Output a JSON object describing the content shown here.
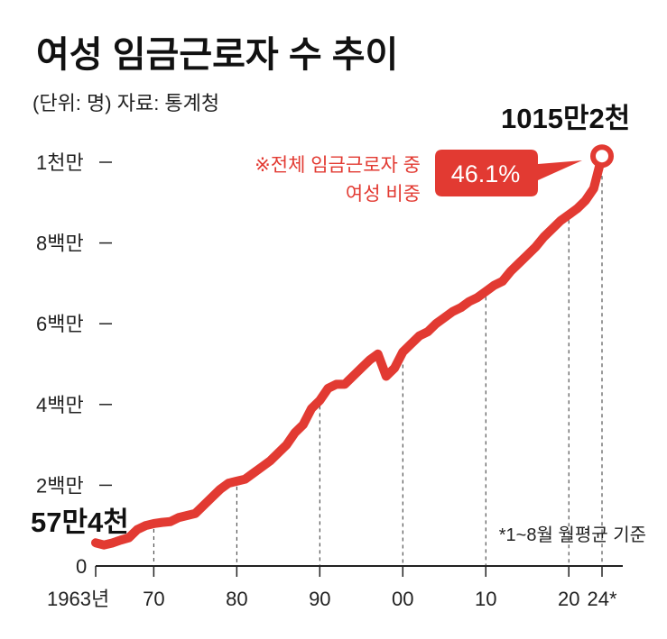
{
  "chart_data": {
    "type": "line",
    "title": "여성 임금근로자 수 추이",
    "subtitle": "(단위: 명) 자료: 통계청",
    "y_tick_labels": [
      "0",
      "2백만",
      "4백만",
      "6백만",
      "8백만",
      "1천만"
    ],
    "y_tick_values": [
      0,
      2000000,
      4000000,
      6000000,
      8000000,
      10000000
    ],
    "ylim": [
      0,
      10000000
    ],
    "x_tick_labels": [
      "1963년",
      "70",
      "80",
      "90",
      "00",
      "10",
      "20",
      "24*"
    ],
    "x_tick_values": [
      1963,
      1970,
      1980,
      1990,
      2000,
      2010,
      2020,
      2024
    ],
    "xlim": [
      1963,
      2024
    ],
    "series": [
      {
        "x": [
          1963,
          1964,
          1965,
          1966,
          1967,
          1968,
          1969,
          1970,
          1971,
          1972,
          1973,
          1974,
          1975,
          1976,
          1977,
          1978,
          1979,
          1980,
          1981,
          1982,
          1983,
          1984,
          1985,
          1986,
          1987,
          1988,
          1989,
          1990,
          1991,
          1992,
          1993,
          1994,
          1995,
          1996,
          1997,
          1998,
          1999,
          2000,
          2001,
          2002,
          2003,
          2004,
          2005,
          2006,
          2007,
          2008,
          2009,
          2010,
          2011,
          2012,
          2013,
          2014,
          2015,
          2016,
          2017,
          2018,
          2019,
          2020,
          2021,
          2022,
          2023,
          2024
        ],
        "values": [
          574000,
          520000,
          570000,
          640000,
          700000,
          900000,
          1000000,
          1050000,
          1080000,
          1100000,
          1200000,
          1250000,
          1300000,
          1500000,
          1700000,
          1900000,
          2050000,
          2100000,
          2150000,
          2300000,
          2450000,
          2600000,
          2800000,
          3000000,
          3300000,
          3500000,
          3900000,
          4100000,
          4400000,
          4500000,
          4500000,
          4700000,
          4900000,
          5100000,
          5250000,
          4700000,
          4900000,
          5300000,
          5500000,
          5700000,
          5800000,
          6000000,
          6150000,
          6300000,
          6400000,
          6550000,
          6650000,
          6800000,
          6950000,
          7050000,
          7300000,
          7500000,
          7700000,
          7900000,
          8150000,
          8350000,
          8550000,
          8700000,
          8850000,
          9050000,
          9350000,
          10152000
        ]
      }
    ],
    "start_label": "57만4천",
    "end_label": "1015만2천",
    "callout": {
      "lines": [
        "※전체 임금근로자 중",
        "여성 비중"
      ],
      "value": "46.1%"
    },
    "footnote": "*1~8월 월평균 기준",
    "grid": "vertical dashed lines at decade ticks",
    "line_color": "#e23a32",
    "callout_color": "#e23a32",
    "text_color": "#111111"
  }
}
